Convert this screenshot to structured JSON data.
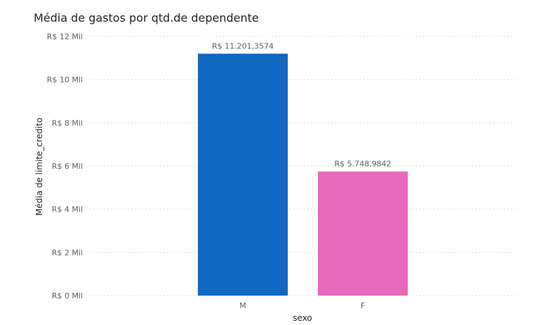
{
  "chart_data": {
    "type": "bar",
    "title": "Média de gastos por qtd.de dependente",
    "xlabel": "sexo",
    "ylabel": "Média de limite_credito",
    "categories": [
      "M",
      "F"
    ],
    "values": [
      11201.3574,
      5748.9842
    ],
    "data_labels": [
      "R$ 11.201,3574",
      "R$ 5.748,9842"
    ],
    "colors": [
      "#1068c1",
      "#e76aba"
    ],
    "ylim": [
      0,
      12000
    ],
    "yticks": [
      0,
      2000,
      4000,
      6000,
      8000,
      10000,
      12000
    ],
    "ytick_labels": [
      "R$ 0 Mil",
      "R$ 2 Mil",
      "R$ 4 Mil",
      "R$ 6 Mil",
      "R$ 8 Mil",
      "R$ 10 Mil",
      "R$ 12 Mil"
    ],
    "grid": true,
    "legend": "none"
  }
}
